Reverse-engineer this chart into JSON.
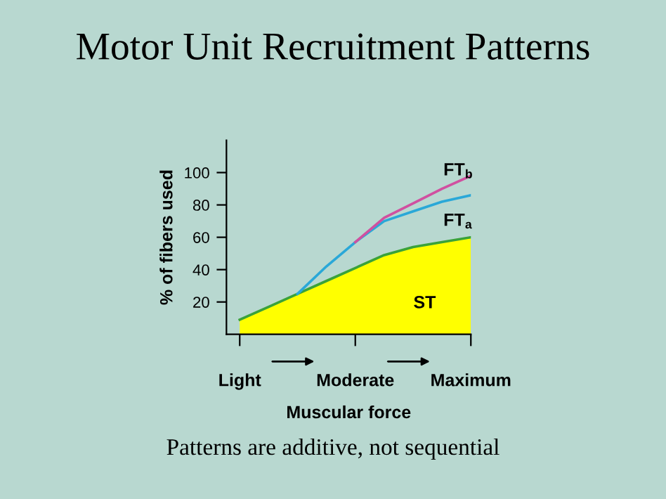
{
  "chart_data": {
    "type": "line",
    "title": "Motor Unit Recruitment Patterns",
    "xlabel": "Muscular force",
    "ylabel": "% of fibers used",
    "annotations": [
      "Patterns are additive, not sequential"
    ],
    "categories": [
      "Light",
      null,
      null,
      null,
      "Moderate",
      null,
      null,
      null,
      "Maximum"
    ],
    "ylim": [
      0,
      120
    ],
    "yticks": [
      20,
      40,
      60,
      80,
      100
    ],
    "grid": false,
    "legend": false,
    "series": [
      {
        "name": "ST",
        "type": "area",
        "color": "#3aa23a",
        "values": [
          9,
          17,
          25,
          33,
          41,
          49,
          54,
          57,
          60
        ]
      },
      {
        "name": "FT$_{a}$",
        "color": "#2aa8d8",
        "values": [
          null,
          null,
          25,
          42,
          57,
          70,
          76,
          82,
          86
        ]
      },
      {
        "name": "FT$_{b}$",
        "color": "#d050a0",
        "values": [
          null,
          null,
          null,
          null,
          57,
          72,
          81,
          90,
          98
        ]
      }
    ]
  }
}
